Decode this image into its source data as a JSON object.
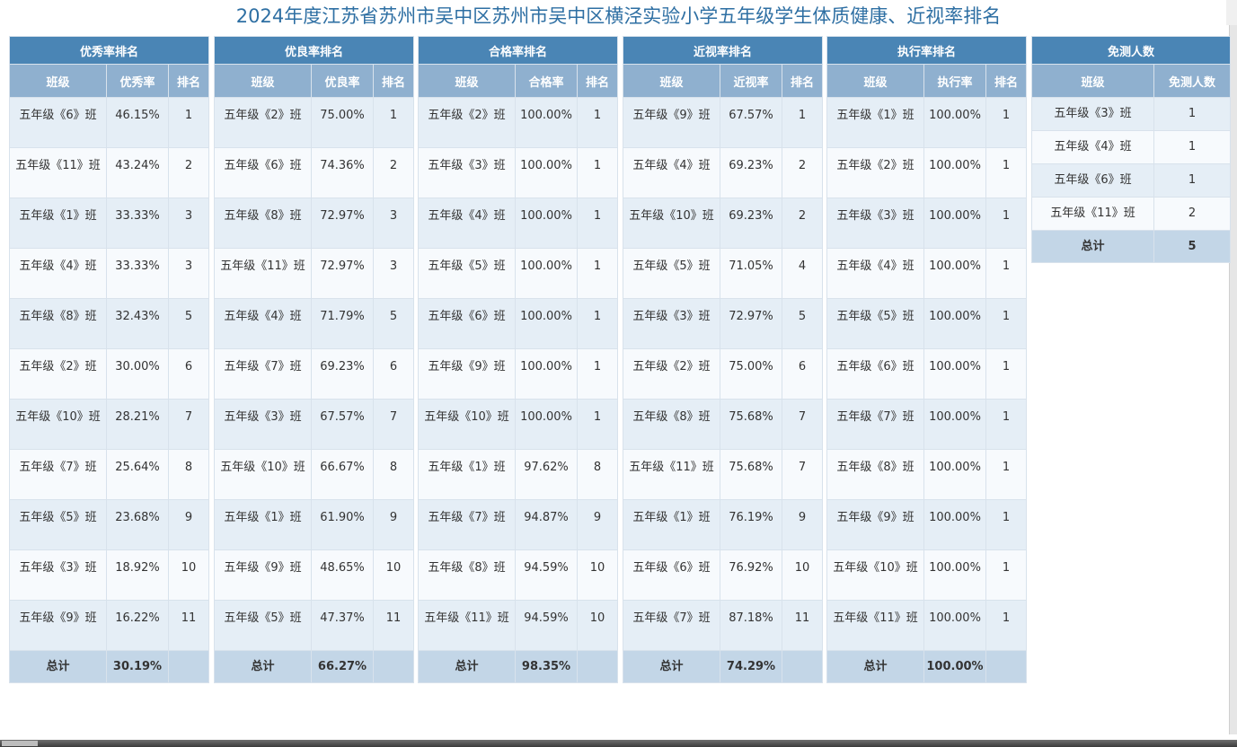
{
  "title": "2024年度江苏省苏州市吴中区苏州市吴中区横泾实验小学五年级学生体质健康、近视率排名",
  "total_label": "总计",
  "tables": [
    {
      "title": "优秀率排名",
      "columns": [
        "班级",
        "优秀率",
        "排名"
      ],
      "rows": [
        [
          "五年级《6》班",
          "46.15%",
          "1"
        ],
        [
          "五年级《11》班",
          "43.24%",
          "2"
        ],
        [
          "五年级《1》班",
          "33.33%",
          "3"
        ],
        [
          "五年级《4》班",
          "33.33%",
          "3"
        ],
        [
          "五年级《8》班",
          "32.43%",
          "5"
        ],
        [
          "五年级《2》班",
          "30.00%",
          "6"
        ],
        [
          "五年级《10》班",
          "28.21%",
          "7"
        ],
        [
          "五年级《7》班",
          "25.64%",
          "8"
        ],
        [
          "五年级《5》班",
          "23.68%",
          "9"
        ],
        [
          "五年级《3》班",
          "18.92%",
          "10"
        ],
        [
          "五年级《9》班",
          "16.22%",
          "11"
        ]
      ],
      "total_value": "30.19%"
    },
    {
      "title": "优良率排名",
      "columns": [
        "班级",
        "优良率",
        "排名"
      ],
      "rows": [
        [
          "五年级《2》班",
          "75.00%",
          "1"
        ],
        [
          "五年级《6》班",
          "74.36%",
          "2"
        ],
        [
          "五年级《8》班",
          "72.97%",
          "3"
        ],
        [
          "五年级《11》班",
          "72.97%",
          "3"
        ],
        [
          "五年级《4》班",
          "71.79%",
          "5"
        ],
        [
          "五年级《7》班",
          "69.23%",
          "6"
        ],
        [
          "五年级《3》班",
          "67.57%",
          "7"
        ],
        [
          "五年级《10》班",
          "66.67%",
          "8"
        ],
        [
          "五年级《1》班",
          "61.90%",
          "9"
        ],
        [
          "五年级《9》班",
          "48.65%",
          "10"
        ],
        [
          "五年级《5》班",
          "47.37%",
          "11"
        ]
      ],
      "total_value": "66.27%"
    },
    {
      "title": "合格率排名",
      "columns": [
        "班级",
        "合格率",
        "排名"
      ],
      "rows": [
        [
          "五年级《2》班",
          "100.00%",
          "1"
        ],
        [
          "五年级《3》班",
          "100.00%",
          "1"
        ],
        [
          "五年级《4》班",
          "100.00%",
          "1"
        ],
        [
          "五年级《5》班",
          "100.00%",
          "1"
        ],
        [
          "五年级《6》班",
          "100.00%",
          "1"
        ],
        [
          "五年级《9》班",
          "100.00%",
          "1"
        ],
        [
          "五年级《10》班",
          "100.00%",
          "1"
        ],
        [
          "五年级《1》班",
          "97.62%",
          "8"
        ],
        [
          "五年级《7》班",
          "94.87%",
          "9"
        ],
        [
          "五年级《8》班",
          "94.59%",
          "10"
        ],
        [
          "五年级《11》班",
          "94.59%",
          "10"
        ]
      ],
      "total_value": "98.35%"
    },
    {
      "title": "近视率排名",
      "columns": [
        "班级",
        "近视率",
        "排名"
      ],
      "rows": [
        [
          "五年级《9》班",
          "67.57%",
          "1"
        ],
        [
          "五年级《4》班",
          "69.23%",
          "2"
        ],
        [
          "五年级《10》班",
          "69.23%",
          "2"
        ],
        [
          "五年级《5》班",
          "71.05%",
          "4"
        ],
        [
          "五年级《3》班",
          "72.97%",
          "5"
        ],
        [
          "五年级《2》班",
          "75.00%",
          "6"
        ],
        [
          "五年级《8》班",
          "75.68%",
          "7"
        ],
        [
          "五年级《11》班",
          "75.68%",
          "7"
        ],
        [
          "五年级《1》班",
          "76.19%",
          "9"
        ],
        [
          "五年级《6》班",
          "76.92%",
          "10"
        ],
        [
          "五年级《7》班",
          "87.18%",
          "11"
        ]
      ],
      "total_value": "74.29%"
    },
    {
      "title": "执行率排名",
      "columns": [
        "班级",
        "执行率",
        "排名"
      ],
      "rows": [
        [
          "五年级《1》班",
          "100.00%",
          "1"
        ],
        [
          "五年级《2》班",
          "100.00%",
          "1"
        ],
        [
          "五年级《3》班",
          "100.00%",
          "1"
        ],
        [
          "五年级《4》班",
          "100.00%",
          "1"
        ],
        [
          "五年级《5》班",
          "100.00%",
          "1"
        ],
        [
          "五年级《6》班",
          "100.00%",
          "1"
        ],
        [
          "五年级《7》班",
          "100.00%",
          "1"
        ],
        [
          "五年级《8》班",
          "100.00%",
          "1"
        ],
        [
          "五年级《9》班",
          "100.00%",
          "1"
        ],
        [
          "五年级《10》班",
          "100.00%",
          "1"
        ],
        [
          "五年级《11》班",
          "100.00%",
          "1"
        ]
      ],
      "total_value": "100.00%"
    }
  ],
  "exempt": {
    "title": "免测人数",
    "columns": [
      "班级",
      "免测人数"
    ],
    "rows": [
      [
        "五年级《3》班",
        "1"
      ],
      [
        "五年级《4》班",
        "1"
      ],
      [
        "五年级《6》班",
        "1"
      ],
      [
        "五年级《11》班",
        "2"
      ]
    ],
    "total_value": "5"
  }
}
